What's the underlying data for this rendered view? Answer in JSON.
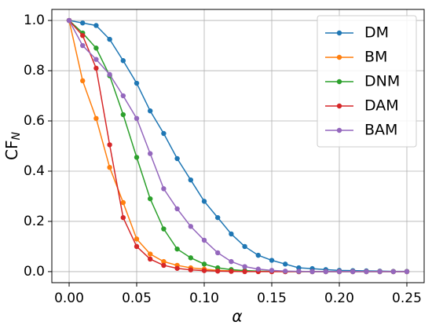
{
  "chart_data": {
    "type": "line",
    "xlabel": "α",
    "ylabel": {
      "main": "CF",
      "sub": "N"
    },
    "x": [
      0,
      0.01,
      0.02,
      0.03,
      0.04,
      0.05,
      0.06,
      0.07,
      0.08,
      0.09,
      0.1,
      0.11,
      0.12,
      0.13,
      0.14,
      0.15,
      0.16,
      0.17,
      0.18,
      0.19,
      0.2,
      0.21,
      0.22,
      0.23,
      0.24,
      0.25
    ],
    "series": [
      {
        "name": "DM",
        "color": "#1f77b4",
        "values": [
          1.0,
          0.99,
          0.98,
          0.925,
          0.84,
          0.75,
          0.64,
          0.55,
          0.45,
          0.365,
          0.28,
          0.215,
          0.15,
          0.1,
          0.065,
          0.045,
          0.03,
          0.015,
          0.012,
          0.008,
          0.005,
          0.004,
          0.003,
          0.002,
          0.001,
          0.001
        ]
      },
      {
        "name": "BM",
        "color": "#ff7f0e",
        "values": [
          1.0,
          0.76,
          0.61,
          0.415,
          0.275,
          0.13,
          0.07,
          0.04,
          0.025,
          0.015,
          0.01,
          0.005,
          0.003,
          0.002,
          0.001,
          0,
          0,
          0,
          0,
          0,
          0,
          0,
          0,
          0,
          0,
          0
        ]
      },
      {
        "name": "DNM",
        "color": "#2ca02c",
        "values": [
          1.0,
          0.95,
          0.89,
          0.78,
          0.625,
          0.455,
          0.29,
          0.17,
          0.09,
          0.055,
          0.03,
          0.015,
          0.008,
          0.004,
          0.002,
          0.001,
          0,
          0,
          0,
          0,
          0,
          0,
          0,
          0,
          0,
          0
        ]
      },
      {
        "name": "DAM",
        "color": "#d62728",
        "values": [
          1.0,
          0.94,
          0.81,
          0.505,
          0.215,
          0.1,
          0.05,
          0.025,
          0.013,
          0.007,
          0.004,
          0.002,
          0.001,
          0,
          0,
          0,
          0,
          0,
          0,
          0,
          0,
          0,
          0,
          0,
          0,
          0
        ]
      },
      {
        "name": "BAM",
        "color": "#9467bd",
        "values": [
          1.0,
          0.9,
          0.845,
          0.785,
          0.7,
          0.61,
          0.47,
          0.33,
          0.25,
          0.18,
          0.125,
          0.075,
          0.04,
          0.02,
          0.01,
          0.005,
          0.002,
          0.001,
          0,
          0,
          0,
          0,
          0,
          0,
          0,
          0
        ]
      }
    ],
    "xlim": [
      -0.0128,
      0.2628
    ],
    "ylim": [
      -0.044,
      1.044
    ],
    "xticks": [
      {
        "value": 0,
        "label": "0.00"
      },
      {
        "value": 0.05,
        "label": "0.05"
      },
      {
        "value": 0.1,
        "label": "0.10"
      },
      {
        "value": 0.15,
        "label": "0.15"
      },
      {
        "value": 0.2,
        "label": "0.20"
      },
      {
        "value": 0.25,
        "label": "0.25"
      }
    ],
    "yticks": [
      {
        "value": 0,
        "label": "0.0"
      },
      {
        "value": 0.2,
        "label": "0.2"
      },
      {
        "value": 0.4,
        "label": "0.4"
      },
      {
        "value": 0.6,
        "label": "0.6"
      },
      {
        "value": 0.8,
        "label": "0.8"
      },
      {
        "value": 1,
        "label": "1.0"
      }
    ],
    "grid": true,
    "legend": "upper right"
  }
}
